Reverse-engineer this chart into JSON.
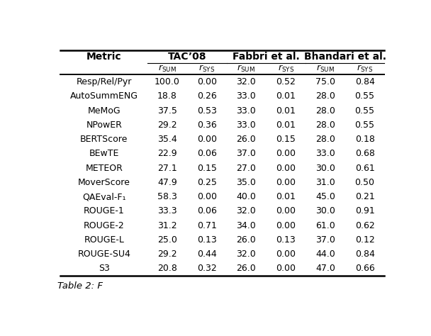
{
  "metrics": [
    "Resp/Rel/Pyr",
    "AutoSummENG",
    "MeMoG",
    "NPowER",
    "BERTScore",
    "BEwTE",
    "METEOR",
    "MoverScore",
    "QAEval-F₁",
    "ROUGE-1",
    "ROUGE-2",
    "ROUGE-L",
    "ROUGE-SU4",
    "S3"
  ],
  "groups": [
    "TAC’08",
    "Fabbri et al.",
    "Bhandari et al."
  ],
  "tac_rsum": [
    100.0,
    18.8,
    37.5,
    29.2,
    35.4,
    22.9,
    27.1,
    47.9,
    58.3,
    33.3,
    31.2,
    25.0,
    29.2,
    20.8
  ],
  "tac_rsys": [
    0.0,
    0.26,
    0.53,
    0.36,
    0.0,
    0.06,
    0.15,
    0.25,
    0.0,
    0.06,
    0.71,
    0.13,
    0.44,
    0.32
  ],
  "fab_rsum": [
    32.0,
    33.0,
    33.0,
    33.0,
    26.0,
    37.0,
    27.0,
    35.0,
    40.0,
    32.0,
    34.0,
    26.0,
    32.0,
    26.0
  ],
  "fab_rsys": [
    0.52,
    0.01,
    0.01,
    0.01,
    0.15,
    0.0,
    0.0,
    0.0,
    0.01,
    0.0,
    0.0,
    0.13,
    0.0,
    0.0
  ],
  "bha_rsum": [
    75.0,
    28.0,
    28.0,
    28.0,
    28.0,
    33.0,
    30.0,
    31.0,
    45.0,
    30.0,
    61.0,
    37.0,
    44.0,
    47.0
  ],
  "bha_rsys": [
    0.84,
    0.55,
    0.55,
    0.55,
    0.18,
    0.68,
    0.61,
    0.5,
    0.21,
    0.91,
    0.62,
    0.12,
    0.84,
    0.66
  ],
  "bg_color": "#ffffff",
  "text_color": "#000000",
  "figsize": [
    6.08,
    4.74
  ],
  "dpi": 100,
  "font_size": 9.0,
  "header_font_size": 10.0
}
